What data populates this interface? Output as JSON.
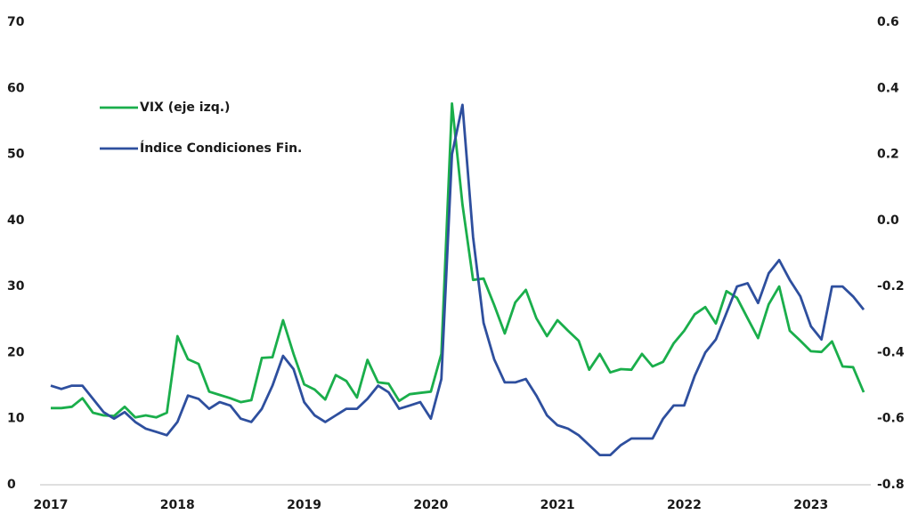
{
  "chart_data": {
    "type": "line",
    "categories": [
      "2017",
      null,
      null,
      null,
      null,
      null,
      null,
      null,
      null,
      null,
      null,
      null,
      "2018",
      null,
      null,
      null,
      null,
      null,
      null,
      null,
      null,
      null,
      null,
      null,
      "2019",
      null,
      null,
      null,
      null,
      null,
      null,
      null,
      null,
      null,
      null,
      null,
      "2020",
      null,
      null,
      null,
      null,
      null,
      null,
      null,
      null,
      null,
      null,
      null,
      "2021",
      null,
      null,
      null,
      null,
      null,
      null,
      null,
      null,
      null,
      null,
      null,
      "2022",
      null,
      null,
      null,
      null,
      null,
      null,
      null,
      null,
      null,
      null,
      null,
      "2023",
      null,
      null,
      null,
      null,
      null
    ],
    "series": [
      {
        "name": "VIX (eje izq.)",
        "color": "#1aae4b",
        "values": [
          11.6,
          11.6,
          11.8,
          13.1,
          10.9,
          10.5,
          10.4,
          11.8,
          10.2,
          10.5,
          10.2,
          10.9,
          22.5,
          19.0,
          18.3,
          14.1,
          13.6,
          13.1,
          12.5,
          12.8,
          19.2,
          19.3,
          24.9,
          19.8,
          15.2,
          14.4,
          12.9,
          16.6,
          15.7,
          13.2,
          18.9,
          15.5,
          15.3,
          12.7,
          13.7,
          13.9,
          14.1,
          19.8,
          57.7,
          42.4,
          31.0,
          31.2,
          27.2,
          22.9,
          27.6,
          29.5,
          25.2,
          22.5,
          24.9,
          23.3,
          21.8,
          17.4,
          19.8,
          17.0,
          17.5,
          17.4,
          19.8,
          17.9,
          18.6,
          21.4,
          23.3,
          25.8,
          26.9,
          24.4,
          29.3,
          28.3,
          25.2,
          22.2,
          27.3,
          30.0,
          23.3,
          21.8,
          20.2,
          20.1,
          21.7,
          17.9,
          17.8,
          14.0
        ]
      },
      {
        "name": "Índice Condiciones Fin.",
        "color": "#2e4f9e",
        "axis": "y2",
        "values": [
          -0.5,
          -0.51,
          -0.5,
          -0.5,
          -0.54,
          -0.58,
          -0.6,
          -0.58,
          -0.61,
          -0.63,
          -0.64,
          -0.65,
          -0.61,
          -0.53,
          -0.54,
          -0.57,
          -0.55,
          -0.56,
          -0.6,
          -0.61,
          -0.57,
          -0.5,
          -0.41,
          -0.45,
          -0.55,
          -0.59,
          -0.61,
          -0.59,
          -0.57,
          -0.57,
          -0.54,
          -0.5,
          -0.52,
          -0.57,
          -0.56,
          -0.55,
          -0.6,
          -0.48,
          0.2,
          0.35,
          -0.05,
          -0.31,
          -0.42,
          -0.49,
          -0.49,
          -0.48,
          -0.53,
          -0.59,
          -0.62,
          -0.63,
          -0.65,
          -0.68,
          -0.71,
          -0.71,
          -0.68,
          -0.66,
          -0.66,
          -0.66,
          -0.6,
          -0.56,
          -0.56,
          -0.47,
          -0.4,
          -0.36,
          -0.28,
          -0.2,
          -0.19,
          -0.25,
          -0.16,
          -0.12,
          -0.18,
          -0.23,
          -0.32,
          -0.36,
          -0.2,
          -0.2,
          -0.23,
          -0.27
        ]
      }
    ],
    "ylim": [
      0,
      70
    ],
    "yticks": [
      0,
      10,
      20,
      30,
      40,
      50,
      60,
      70
    ],
    "y2lim": [
      -0.8,
      0.6
    ],
    "y2ticks": [
      -0.8,
      -0.6,
      -0.4,
      -0.2,
      {
        "value": 0,
        "label": "0.0"
      },
      0.2,
      0.4,
      0.6
    ],
    "grid": false,
    "legend": "upper-left"
  }
}
